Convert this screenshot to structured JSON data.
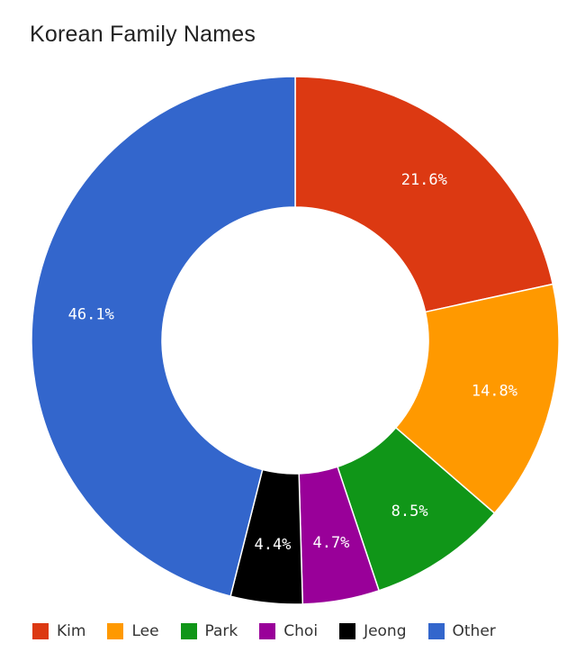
{
  "chart_data": {
    "type": "pie",
    "title": "Korean Family Names",
    "donut": true,
    "legend_position": "bottom",
    "categories": [
      "Kim",
      "Lee",
      "Park",
      "Choi",
      "Jeong",
      "Other"
    ],
    "values": [
      21.6,
      14.8,
      8.5,
      4.7,
      4.4,
      46.1
    ],
    "labels": [
      "21.6%",
      "14.8%",
      "8.5%",
      "4.7%",
      "4.4%",
      "46.1%"
    ],
    "colors": [
      "#dc3912",
      "#ff9900",
      "#109618",
      "#990099",
      "#000000",
      "#3366cc"
    ]
  }
}
